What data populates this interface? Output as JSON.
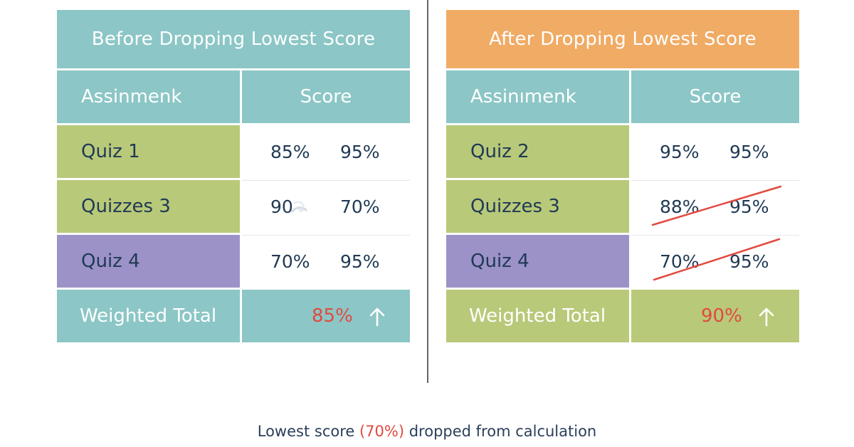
{
  "colors": {
    "teal": "#8cc6c6",
    "orange": "#f0ab65",
    "green": "#b8c979",
    "purple": "#9c92c8",
    "red": "#e24a3f",
    "navy": "#213a55",
    "divider": "#666666"
  },
  "before": {
    "title": "Before Dropping Lowest Score",
    "col_assignment": "Assinmenk",
    "col_score": "Score",
    "rows": [
      {
        "label": "Quiz 1",
        "v1": "85%",
        "v2": "95%"
      },
      {
        "label": "Quizzes 3",
        "v1": "90",
        "v2": "70%"
      },
      {
        "label": "Quiz 4",
        "v1": "70%",
        "v2": "95%"
      }
    ],
    "total_label": "Weighted Total",
    "total_value": "85%"
  },
  "after": {
    "title": "After Dropping Lowest Score",
    "col_assignment": "Assinımenk",
    "col_score": "Score",
    "rows": [
      {
        "label": "Quiz 2",
        "v1": "95%",
        "v2": "95%",
        "struck": false
      },
      {
        "label": "Quizzes 3",
        "v1": "88%",
        "v2": "95%",
        "struck": true
      },
      {
        "label": "Quiz 4",
        "v1": "70%",
        "v2": "95%",
        "struck": true
      }
    ],
    "total_label": "Weighted Total",
    "total_value": "90%"
  },
  "footer": {
    "prefix": "Lowest score ",
    "highlight": "(70%)",
    "suffix": " dropped from calculation"
  },
  "icons": {
    "up_arrow": "arrow-up-icon",
    "strike": "strikethrough-line",
    "smudge": "smudge-mark"
  }
}
